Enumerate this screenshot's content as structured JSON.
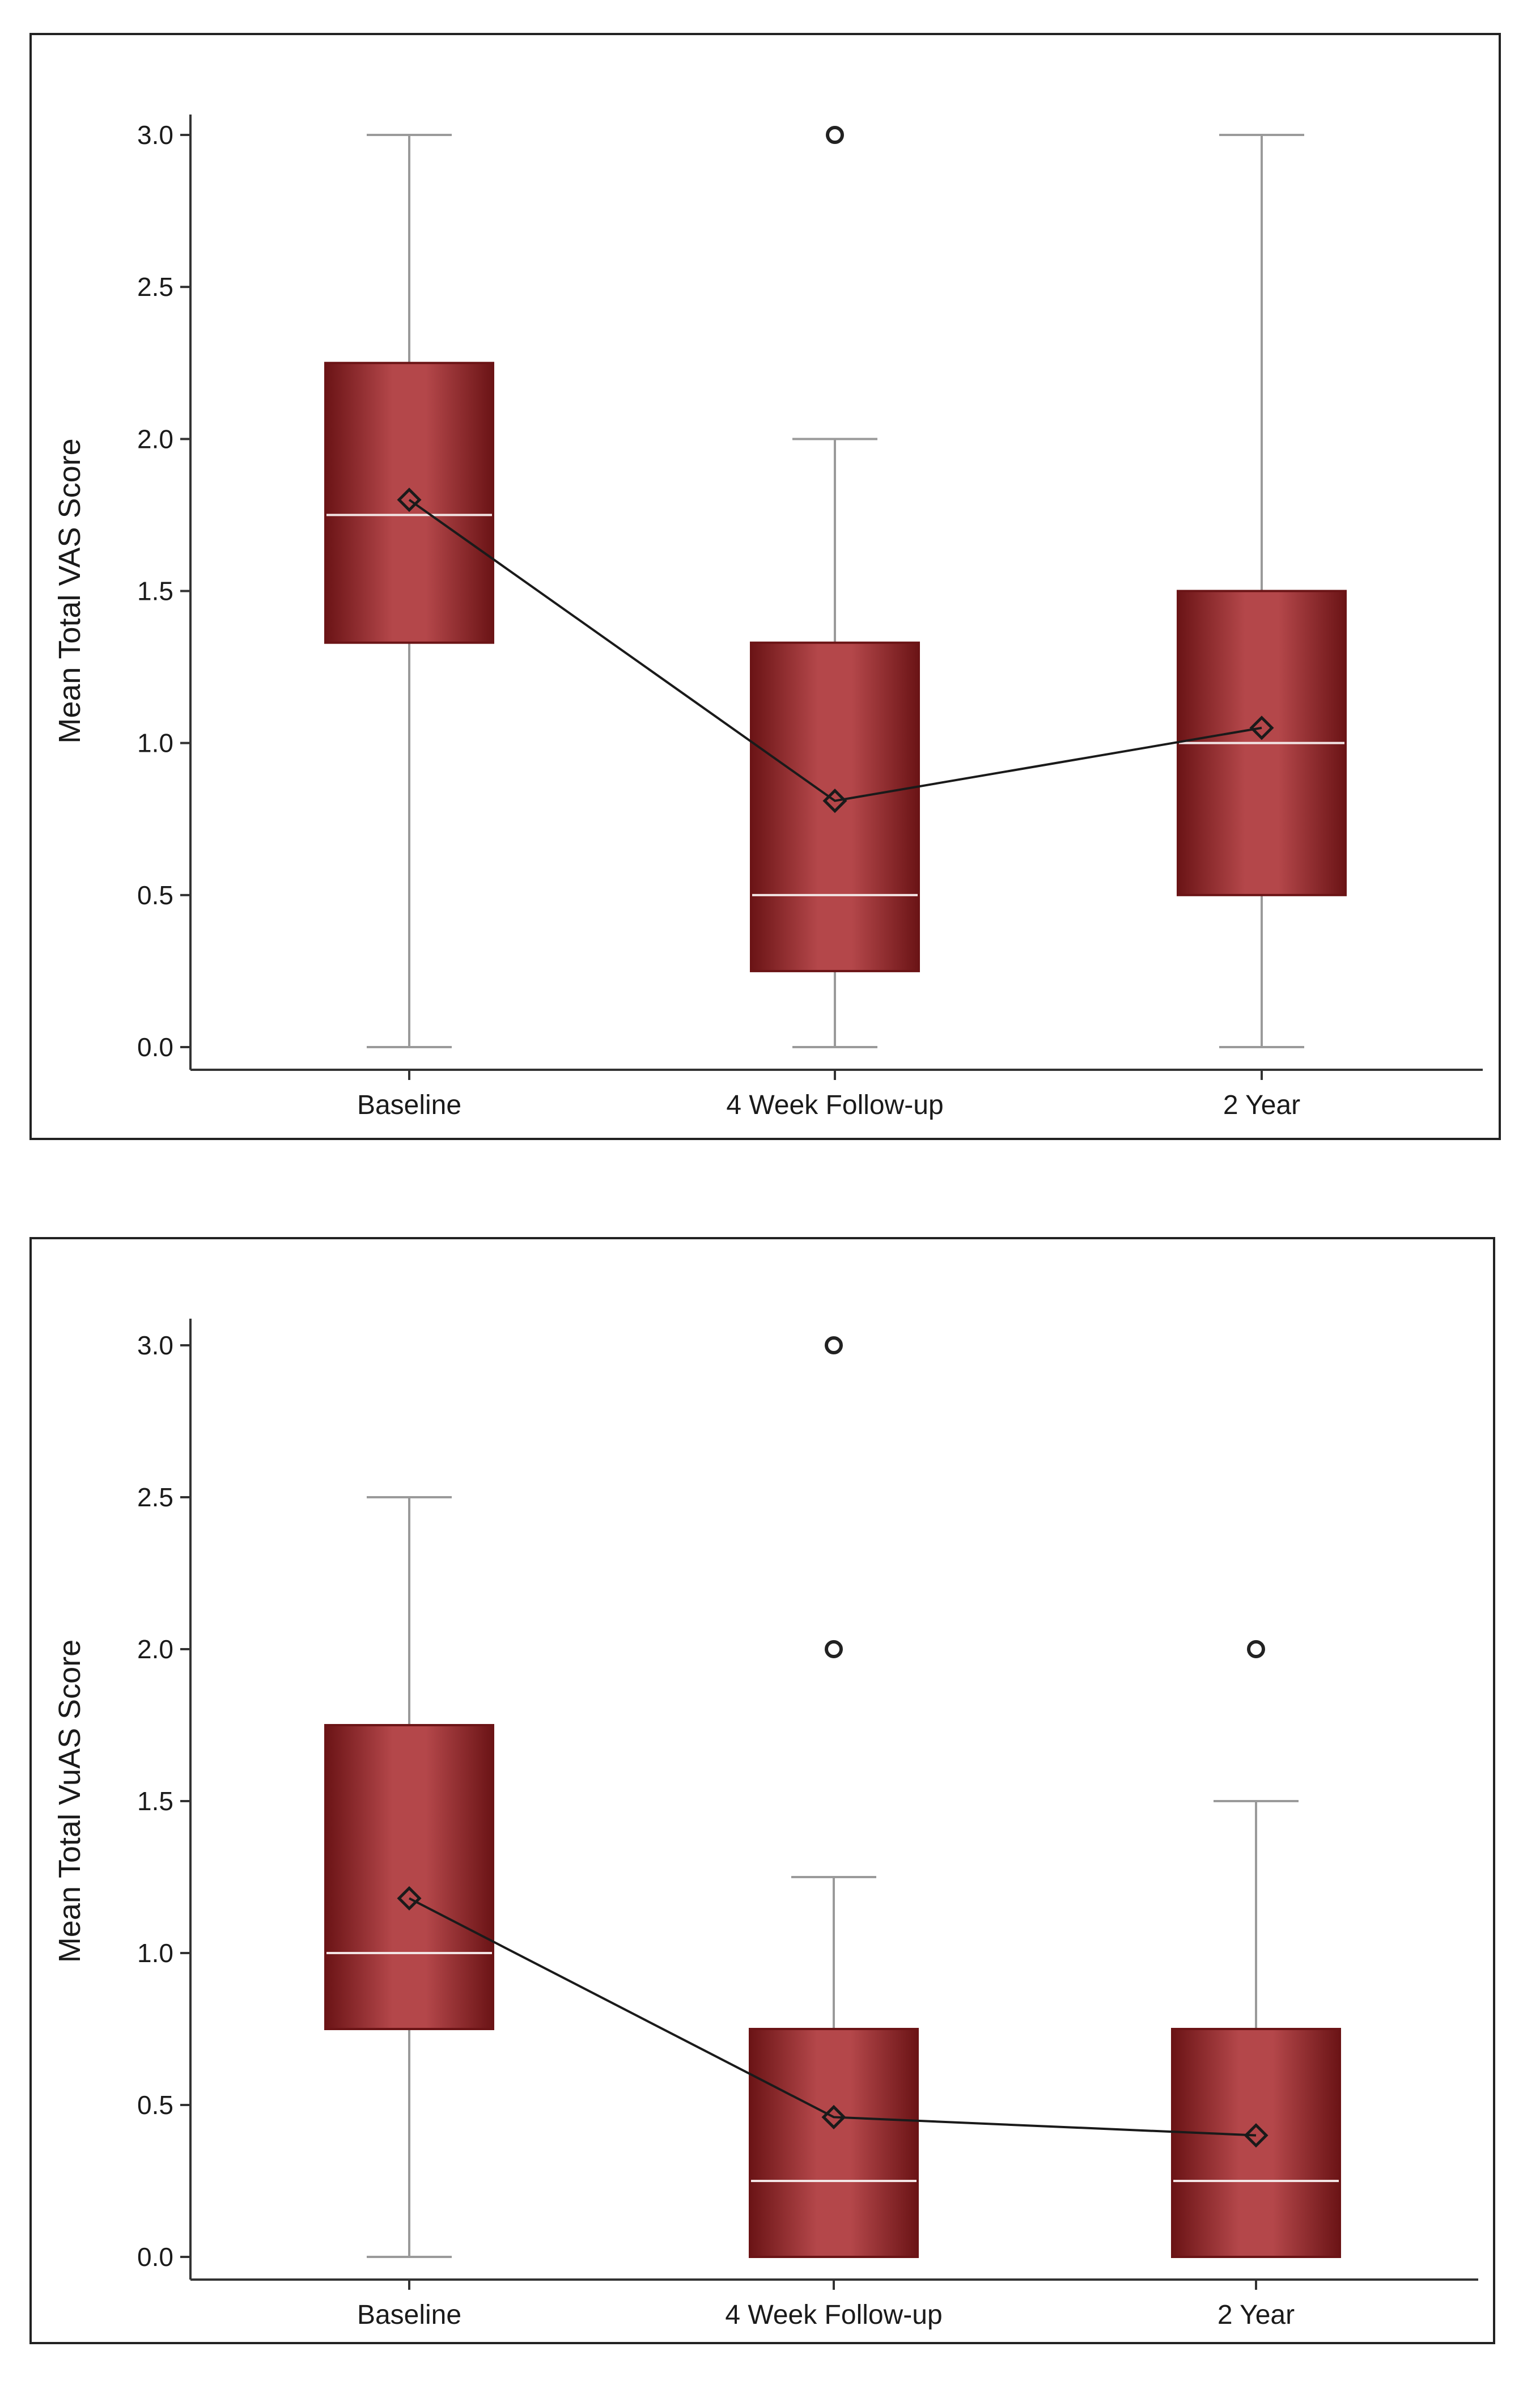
{
  "chart_data": [
    {
      "type": "box",
      "ylabel": "Mean Total VAS Score",
      "xlabel": "",
      "ylim": [
        0,
        3
      ],
      "yticks": [
        "0.0",
        "0.5",
        "1.0",
        "1.5",
        "2.0",
        "2.5",
        "3.0"
      ],
      "categories": [
        "Baseline",
        "4 Week Follow-up",
        "2 Year"
      ],
      "boxes": [
        {
          "min": 0.0,
          "q1": 1.33,
          "median": 1.75,
          "q3": 2.25,
          "max": 3.0,
          "mean": 1.8,
          "outliers": []
        },
        {
          "min": 0.0,
          "q1": 0.25,
          "median": 0.5,
          "q3": 1.33,
          "max": 2.0,
          "mean": 0.81,
          "outliers": [
            3.0
          ]
        },
        {
          "min": 0.0,
          "q1": 0.5,
          "median": 1.0,
          "q3": 1.5,
          "max": 3.0,
          "mean": 1.05,
          "outliers": []
        }
      ],
      "mean_line": true,
      "colors": {
        "box_dark": "#6b1416",
        "box_light": "#b4474a",
        "median": "#f2e4e4",
        "whisker": "#9a9a9a",
        "axis": "#333333",
        "mean_line": "#1a1a1a"
      }
    },
    {
      "type": "box",
      "ylabel": "Mean Total VuAS Score",
      "xlabel": "",
      "ylim": [
        0,
        3
      ],
      "yticks": [
        "0.0",
        "0.5",
        "1.0",
        "1.5",
        "2.0",
        "2.5",
        "3.0"
      ],
      "categories": [
        "Baseline",
        "4 Week Follow-up",
        "2 Year"
      ],
      "boxes": [
        {
          "min": 0.0,
          "q1": 0.75,
          "median": 1.0,
          "q3": 1.75,
          "max": 2.5,
          "mean": 1.18,
          "outliers": []
        },
        {
          "min": 0.0,
          "q1": 0.0,
          "median": 0.25,
          "q3": 0.75,
          "max": 1.25,
          "mean": 0.46,
          "outliers": [
            2.0,
            3.0
          ]
        },
        {
          "min": 0.0,
          "q1": 0.0,
          "median": 0.25,
          "q3": 0.75,
          "max": 1.5,
          "mean": 0.4,
          "outliers": [
            2.0
          ]
        }
      ],
      "mean_line": true,
      "colors": {
        "box_dark": "#6b1416",
        "box_light": "#b4474a",
        "median": "#f2e4e4",
        "whisker": "#9a9a9a",
        "axis": "#333333",
        "mean_line": "#1a1a1a"
      }
    }
  ]
}
